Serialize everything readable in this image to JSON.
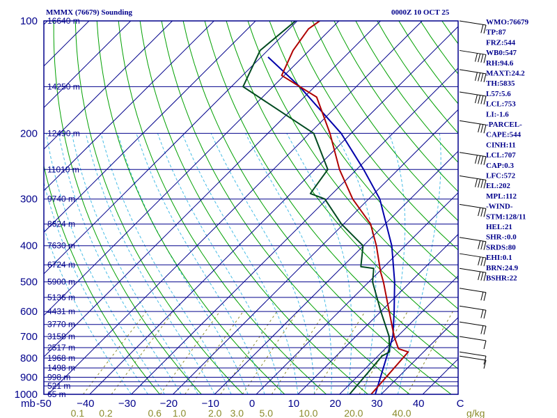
{
  "chart_data": {
    "type": "skew-t",
    "title": "MMMX (76679) Sounding",
    "valid_time": "0000Z 10 OCT 25",
    "pressure_unit": "mb",
    "mixing_ratio_unit": "g/kg",
    "pressure_labels": [
      "100",
      "200",
      "300",
      "400",
      "500",
      "600",
      "700",
      "800",
      "900",
      "1000"
    ],
    "pressure_values": [
      100,
      200,
      300,
      400,
      500,
      600,
      700,
      800,
      900,
      1000
    ],
    "isobars": [
      100,
      150,
      200,
      250,
      300,
      350,
      400,
      450,
      500,
      550,
      600,
      650,
      700,
      750,
      800,
      850,
      900,
      925,
      950,
      1000
    ],
    "heights": [
      {
        "p": 100,
        "label": "16640 m"
      },
      {
        "p": 150,
        "label": "14250 m"
      },
      {
        "p": 200,
        "label": "12490 m"
      },
      {
        "p": 250,
        "label": "11010 m"
      },
      {
        "p": 300,
        "label": "9740 m"
      },
      {
        "p": 350,
        "label": "8624 m"
      },
      {
        "p": 400,
        "label": "7630 m"
      },
      {
        "p": 450,
        "label": "6724 m"
      },
      {
        "p": 500,
        "label": "5900 m"
      },
      {
        "p": 550,
        "label": "5136 m"
      },
      {
        "p": 600,
        "label": "4431 m"
      },
      {
        "p": 650,
        "label": "3770 m"
      },
      {
        "p": 700,
        "label": "3158 m"
      },
      {
        "p": 750,
        "label": "2517 m"
      },
      {
        "p": 800,
        "label": "1968 m"
      },
      {
        "p": 850,
        "label": "1498 m"
      },
      {
        "p": 900,
        "label": "998 m"
      },
      {
        "p": 950,
        "label": "521 m"
      },
      {
        "p": 1000,
        "label": "65 m"
      }
    ],
    "temperature_ticks": [
      {
        "t": -50,
        "label": "-50"
      },
      {
        "t": -40,
        "label": "−40"
      },
      {
        "t": -30,
        "label": "−30"
      },
      {
        "t": -20,
        "label": "−20"
      },
      {
        "t": -10,
        "label": "−10"
      },
      {
        "t": 0,
        "label": "0"
      },
      {
        "t": 10,
        "label": "10"
      },
      {
        "t": 20,
        "label": "20"
      },
      {
        "t": 30,
        "label": "30"
      },
      {
        "t": 40,
        "label": "40"
      },
      {
        "t": 50,
        "label": "C"
      }
    ],
    "mixing_ratio_ticks": [
      {
        "w": 0.1,
        "label": "0.1"
      },
      {
        "w": 0.2,
        "label": "0.2"
      },
      {
        "w": 0.6,
        "label": "0.6"
      },
      {
        "w": 1.0,
        "label": "1.0"
      },
      {
        "w": 2.0,
        "label": "2.0"
      },
      {
        "w": 3.0,
        "label": "3.0"
      },
      {
        "w": 5.0,
        "label": "5.0"
      },
      {
        "w": 10.0,
        "label": "10.0"
      },
      {
        "w": 20.0,
        "label": "20.0"
      },
      {
        "w": 40.0,
        "label": "40.0"
      }
    ],
    "temperature_profile": [
      {
        "p": 1000,
        "t": 27.6
      },
      {
        "p": 770,
        "t": 26.3
      },
      {
        "p": 755,
        "t": 23.2
      },
      {
        "p": 700,
        "t": 19.2
      },
      {
        "p": 600,
        "t": 12.0
      },
      {
        "p": 500,
        "t": 3.5
      },
      {
        "p": 470,
        "t": 0.4
      },
      {
        "p": 400,
        "t": -6.9
      },
      {
        "p": 350,
        "t": -13.5
      },
      {
        "p": 300,
        "t": -23.8
      },
      {
        "p": 250,
        "t": -34.1
      },
      {
        "p": 200,
        "t": -45.1
      },
      {
        "p": 160,
        "t": -57.0
      },
      {
        "p": 140,
        "t": -70.6
      },
      {
        "p": 120,
        "t": -73.9
      },
      {
        "p": 105,
        "t": -75.4
      },
      {
        "p": 100,
        "t": -74.6
      }
    ],
    "dewpoint_profile": [
      {
        "p": 1000,
        "t": 22.4
      },
      {
        "p": 790,
        "t": 21.0
      },
      {
        "p": 770,
        "t": 21.8
      },
      {
        "p": 700,
        "t": 18.0
      },
      {
        "p": 600,
        "t": 10.0
      },
      {
        "p": 500,
        "t": 0.9
      },
      {
        "p": 470,
        "t": -1.3
      },
      {
        "p": 460,
        "t": -2.1
      },
      {
        "p": 455,
        "t": -5.6
      },
      {
        "p": 400,
        "t": -10.1
      },
      {
        "p": 350,
        "t": -20.5
      },
      {
        "p": 300,
        "t": -30.5
      },
      {
        "p": 290,
        "t": -35.3
      },
      {
        "p": 250,
        "t": -36.9
      },
      {
        "p": 200,
        "t": -49.0
      },
      {
        "p": 150,
        "t": -77.2
      },
      {
        "p": 120,
        "t": -81.8
      },
      {
        "p": 100,
        "t": -80.4
      }
    ],
    "parcel_profile": [
      {
        "p": 1000,
        "t": 28.6
      },
      {
        "p": 700,
        "t": 18.9
      },
      {
        "p": 600,
        "t": 13.2
      },
      {
        "p": 500,
        "t": 6.2
      },
      {
        "p": 400,
        "t": -3.2
      },
      {
        "p": 300,
        "t": -17.3
      },
      {
        "p": 250,
        "t": -28.3
      },
      {
        "p": 200,
        "t": -42.4
      },
      {
        "p": 150,
        "t": -63.6
      },
      {
        "p": 125,
        "t": -78.3
      }
    ],
    "winds": [
      {
        "p": 100,
        "barbs": 2
      },
      {
        "p": 120,
        "barbs": 4
      },
      {
        "p": 135,
        "barbs": 4
      },
      {
        "p": 155,
        "barbs": 4
      },
      {
        "p": 185,
        "barbs": 3
      },
      {
        "p": 225,
        "barbs": 4
      },
      {
        "p": 260,
        "barbs": 4
      },
      {
        "p": 310,
        "barbs": 3
      },
      {
        "p": 380,
        "barbs": 3
      },
      {
        "p": 420,
        "barbs": 3
      },
      {
        "p": 460,
        "barbs": 3
      },
      {
        "p": 520,
        "barbs": 2
      },
      {
        "p": 580,
        "barbs": 2
      },
      {
        "p": 640,
        "barbs": 2
      },
      {
        "p": 700,
        "barbs": 1
      },
      {
        "p": 770,
        "barbs": 1
      },
      {
        "p": 790,
        "barbs": 1
      }
    ]
  },
  "indices": [
    "WMO:76679",
    "TP:87",
    "FRZ:544",
    "WB0:547",
    "RH:94.6",
    "MAXT:24.2",
    "TH:5835",
    "L57:5.6",
    "LCL:753",
    "LI:-1.6",
    "-PARCEL-",
    "CAPE:544",
    "CINH:11",
    "LCL:707",
    "CAP:0.3",
    "LFC:572",
    "EL:202",
    "MPL:112",
    "-WIND-",
    "STM:128/11",
    "HEL:21",
    "SHR-:0.0",
    "SRDS:80",
    "EHI:0.1",
    "BRN:24.9",
    "BSHR:22"
  ],
  "colors": {
    "isobar": "#00008b",
    "isotherm": "#00008b",
    "dry_adiabat": "#00a000",
    "moist_adiabat": "#46bce6",
    "mixing_ratio": "#8b8b2b",
    "temperature": "#b00000",
    "dewpoint": "#004a20",
    "parcel": "#0000aa"
  }
}
